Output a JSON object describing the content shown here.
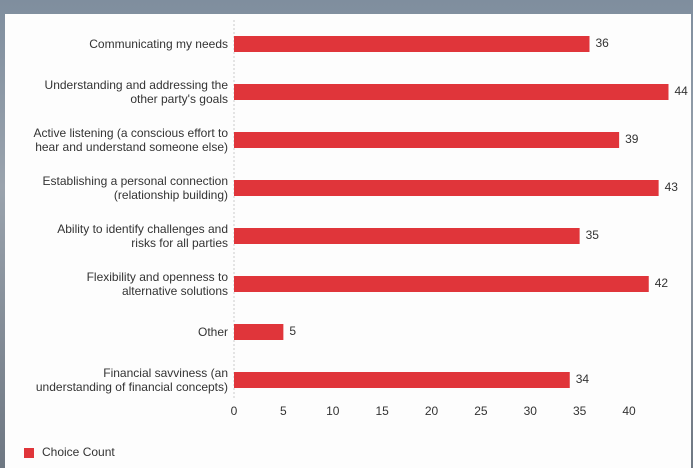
{
  "chart_data": {
    "type": "bar",
    "orientation": "horizontal",
    "categories": [
      "Communicating my needs",
      "Understanding and addressing the\nother party's goals",
      "Active listening (a conscious effort to\nhear and understand someone else)",
      "Establishing a personal connection\n(relationship building)",
      "Ability to identify challenges and\nrisks for all parties",
      "Flexibility and openness to\nalternative solutions",
      "Other",
      "Financial savviness (an\nunderstanding of financial concepts)"
    ],
    "series": [
      {
        "name": "Choice Count",
        "color": "#e0353a",
        "values": [
          36,
          44,
          39,
          43,
          35,
          42,
          5,
          34
        ]
      }
    ],
    "xlim": [
      0,
      44.5
    ],
    "xticks": [
      0,
      5,
      10,
      15,
      20,
      25,
      30,
      35,
      40
    ]
  }
}
